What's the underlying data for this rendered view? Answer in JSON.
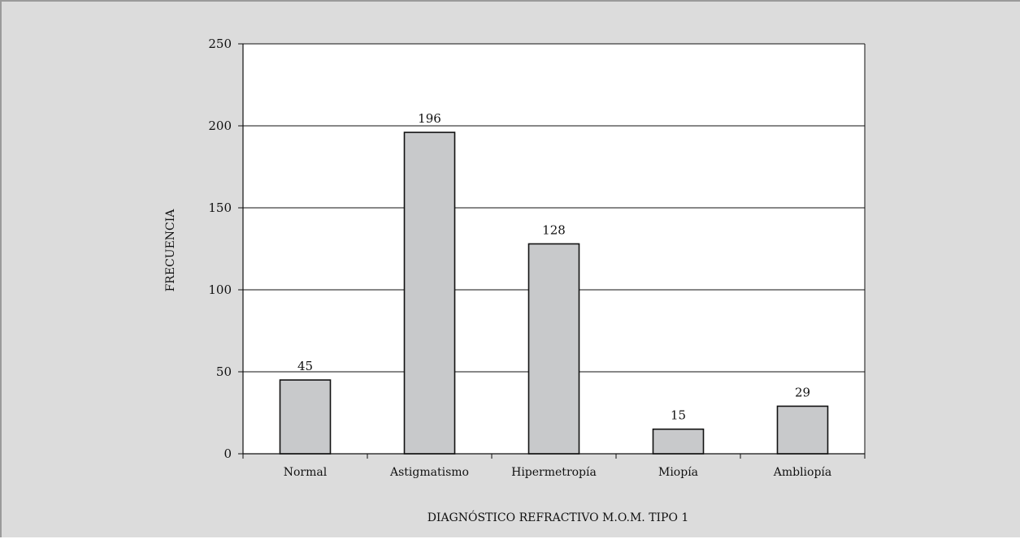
{
  "chart_data": {
    "type": "bar",
    "categories": [
      "Normal",
      "Astigmatismo",
      "Hipermetropía",
      "Miopía",
      "Ambliopía"
    ],
    "values": [
      45,
      196,
      128,
      15,
      29
    ],
    "title": "",
    "xlabel": "DIAGNÓSTICO REFRACTIVO M.O.M. TIPO 1",
    "ylabel": "FRECUENCIA",
    "ylim": [
      0,
      250
    ],
    "yticks": [
      0,
      50,
      100,
      150,
      200,
      250
    ],
    "grid": "horizontal",
    "legend": "none",
    "colors": {
      "bar_fill": "#c8c9cb",
      "bar_stroke": "#111111",
      "plot_bg": "#ffffff",
      "frame_bg": "#dcdcdc"
    }
  }
}
